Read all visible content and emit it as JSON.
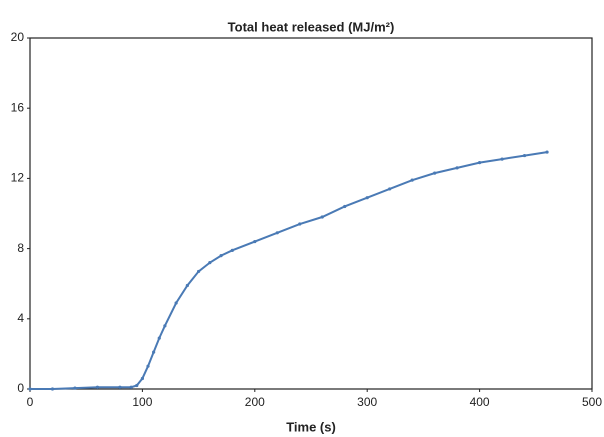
{
  "chart_data": {
    "type": "line",
    "title": "Total heat released (MJ/m²)",
    "x_label": "Time (s)",
    "x": [
      0,
      20,
      40,
      60,
      80,
      90,
      95,
      100,
      105,
      110,
      115,
      120,
      130,
      140,
      150,
      160,
      170,
      180,
      200,
      220,
      240,
      260,
      280,
      300,
      320,
      340,
      360,
      380,
      400,
      420,
      440,
      460
    ],
    "series": [
      {
        "color": "#4a7ab5",
        "values": [
          0,
          0,
          0.05,
          0.1,
          0.1,
          0.1,
          0.2,
          0.6,
          1.3,
          2.1,
          2.9,
          3.6,
          4.9,
          5.9,
          6.7,
          7.2,
          7.6,
          7.9,
          8.4,
          8.9,
          9.4,
          9.8,
          10.4,
          10.9,
          11.4,
          11.9,
          12.3,
          12.6,
          12.9,
          13.1,
          13.3,
          13.5
        ]
      }
    ],
    "xlim": [
      0,
      500
    ],
    "xticks": [
      0,
      100,
      200,
      300,
      400,
      500
    ],
    "ylim": [
      0,
      20
    ],
    "yticks": [
      0,
      4,
      8,
      12,
      16,
      20
    ],
    "grid": false
  }
}
